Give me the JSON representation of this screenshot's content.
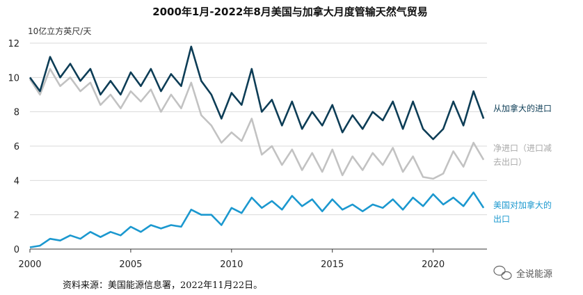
{
  "chart_data": {
    "type": "line",
    "title": "2000年1月-2022年8月美国与加拿大月度管输天然气贸易",
    "ylabel": "10亿立方英尺/天",
    "xlabel": "",
    "xlim": [
      2000,
      2022.67
    ],
    "ylim": [
      0,
      12
    ],
    "x_ticks": [
      "2000",
      "2005",
      "2010",
      "2015",
      "2020"
    ],
    "y_ticks": [
      "0",
      "2",
      "4",
      "6",
      "8",
      "10",
      "12"
    ],
    "grid": "horizontal",
    "legend": "inline-right",
    "x": [
      2000.0,
      2000.5,
      2001.0,
      2001.5,
      2002.0,
      2002.5,
      2003.0,
      2003.5,
      2004.0,
      2004.5,
      2005.0,
      2005.5,
      2006.0,
      2006.5,
      2007.0,
      2007.5,
      2008.0,
      2008.5,
      2009.0,
      2009.5,
      2010.0,
      2010.5,
      2011.0,
      2011.5,
      2012.0,
      2012.5,
      2013.0,
      2013.5,
      2014.0,
      2014.5,
      2015.0,
      2015.5,
      2016.0,
      2016.5,
      2017.0,
      2017.5,
      2018.0,
      2018.5,
      2019.0,
      2019.5,
      2020.0,
      2020.5,
      2021.0,
      2021.5,
      2022.0,
      2022.5
    ],
    "series": [
      {
        "name": "从加拿大的进口",
        "color": "#0d3d56",
        "values": [
          10.0,
          9.2,
          11.2,
          10.0,
          10.8,
          9.8,
          10.5,
          9.0,
          9.8,
          9.0,
          10.3,
          9.5,
          10.5,
          9.2,
          10.2,
          9.5,
          11.8,
          9.8,
          9.0,
          7.6,
          9.1,
          8.4,
          10.5,
          8.0,
          8.7,
          7.2,
          8.6,
          7.0,
          8.0,
          7.2,
          8.4,
          6.8,
          7.8,
          7.0,
          8.0,
          7.5,
          8.6,
          7.0,
          8.6,
          7.0,
          6.4,
          7.0,
          8.6,
          7.2,
          9.2,
          7.6
        ]
      },
      {
        "name": "净进口（进口减去出口）",
        "color": "#c2c2c2",
        "values": [
          9.9,
          9.0,
          10.5,
          9.5,
          10.0,
          9.2,
          9.7,
          8.4,
          9.0,
          8.2,
          9.2,
          8.6,
          9.3,
          8.0,
          9.0,
          8.2,
          9.7,
          7.8,
          7.2,
          6.2,
          6.8,
          6.3,
          7.6,
          5.5,
          6.0,
          4.9,
          5.8,
          4.6,
          5.6,
          4.5,
          5.8,
          4.3,
          5.4,
          4.6,
          5.6,
          4.9,
          5.9,
          4.5,
          5.4,
          4.2,
          4.1,
          4.4,
          5.7,
          4.8,
          6.2,
          5.2
        ]
      },
      {
        "name": "美国对加拿大的出口",
        "color": "#1b98cf",
        "values": [
          0.1,
          0.2,
          0.6,
          0.5,
          0.8,
          0.6,
          1.0,
          0.7,
          1.0,
          0.8,
          1.3,
          1.0,
          1.4,
          1.2,
          1.4,
          1.3,
          2.3,
          2.0,
          2.0,
          1.4,
          2.4,
          2.1,
          3.0,
          2.4,
          2.8,
          2.3,
          3.1,
          2.5,
          2.9,
          2.2,
          2.9,
          2.3,
          2.6,
          2.2,
          2.6,
          2.4,
          2.9,
          2.3,
          3.0,
          2.5,
          3.2,
          2.6,
          3.0,
          2.5,
          3.3,
          2.4
        ]
      }
    ]
  },
  "footer": {
    "source": "资料来源：美国能源信息署，2022年11月22日。",
    "watermark": "全说能源"
  }
}
